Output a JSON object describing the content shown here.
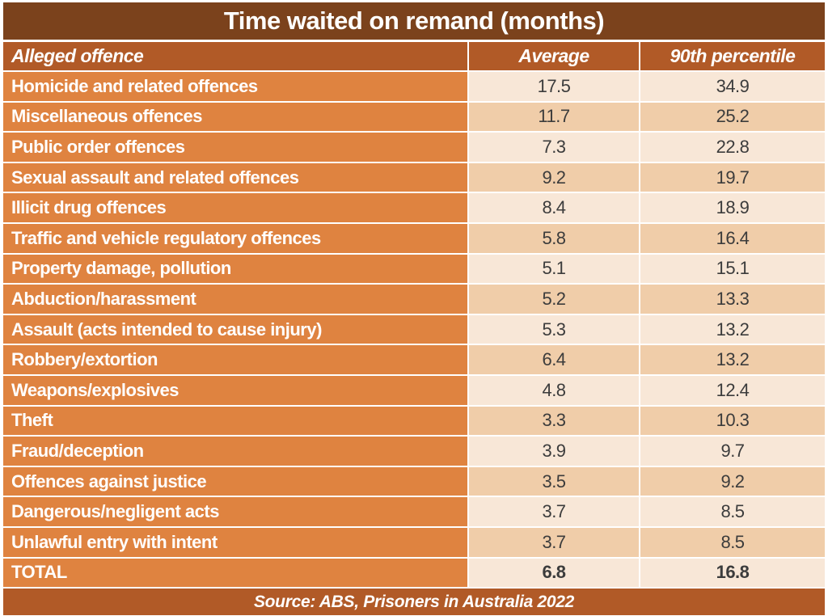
{
  "chart_data": {
    "type": "table",
    "title": "Time waited on remand (months)",
    "columns": [
      "Alleged offence",
      "Average",
      "90th percentile"
    ],
    "rows": [
      [
        "Homicide and related offences",
        "17.5",
        "34.9"
      ],
      [
        "Miscellaneous offences",
        "11.7",
        "25.2"
      ],
      [
        "Public order offences",
        "7.3",
        "22.8"
      ],
      [
        "Sexual assault and related offences",
        "9.2",
        "19.7"
      ],
      [
        "Illicit drug offences",
        "8.4",
        "18.9"
      ],
      [
        "Traffic and vehicle regulatory offences",
        "5.8",
        "16.4"
      ],
      [
        "Property damage, pollution",
        "5.1",
        "15.1"
      ],
      [
        "Abduction/harassment",
        "5.2",
        "13.3"
      ],
      [
        "Assault (acts intended to cause injury)",
        "5.3",
        "13.2"
      ],
      [
        "Robbery/extortion",
        "6.4",
        "13.2"
      ],
      [
        "Weapons/explosives",
        "4.8",
        "12.4"
      ],
      [
        "Theft",
        "3.3",
        "10.3"
      ],
      [
        "Fraud/deception",
        "3.9",
        "9.7"
      ],
      [
        "Offences against justice",
        "3.5",
        "9.2"
      ],
      [
        "Dangerous/negligent acts",
        "3.7",
        "8.5"
      ],
      [
        "Unlawful entry with intent",
        "3.7",
        "8.5"
      ]
    ],
    "total_row": [
      "TOTAL",
      "6.8",
      "16.8"
    ],
    "source": "Source: ABS, Prisoners in Australia 2022",
    "layout": {
      "grid": "off",
      "legend": "none",
      "shading": "alternating data-cell rows, offence column solid orange"
    }
  },
  "colors": {
    "title_bar": "#7B421C",
    "header_footer_bar": "#B15A27",
    "offence_column": "#DF8340",
    "data_cell_light": "#F8E7D7",
    "data_cell_shaded": "#F0CDA9",
    "value_text": "#3C3C3C",
    "divider": "#FFFFFF"
  }
}
